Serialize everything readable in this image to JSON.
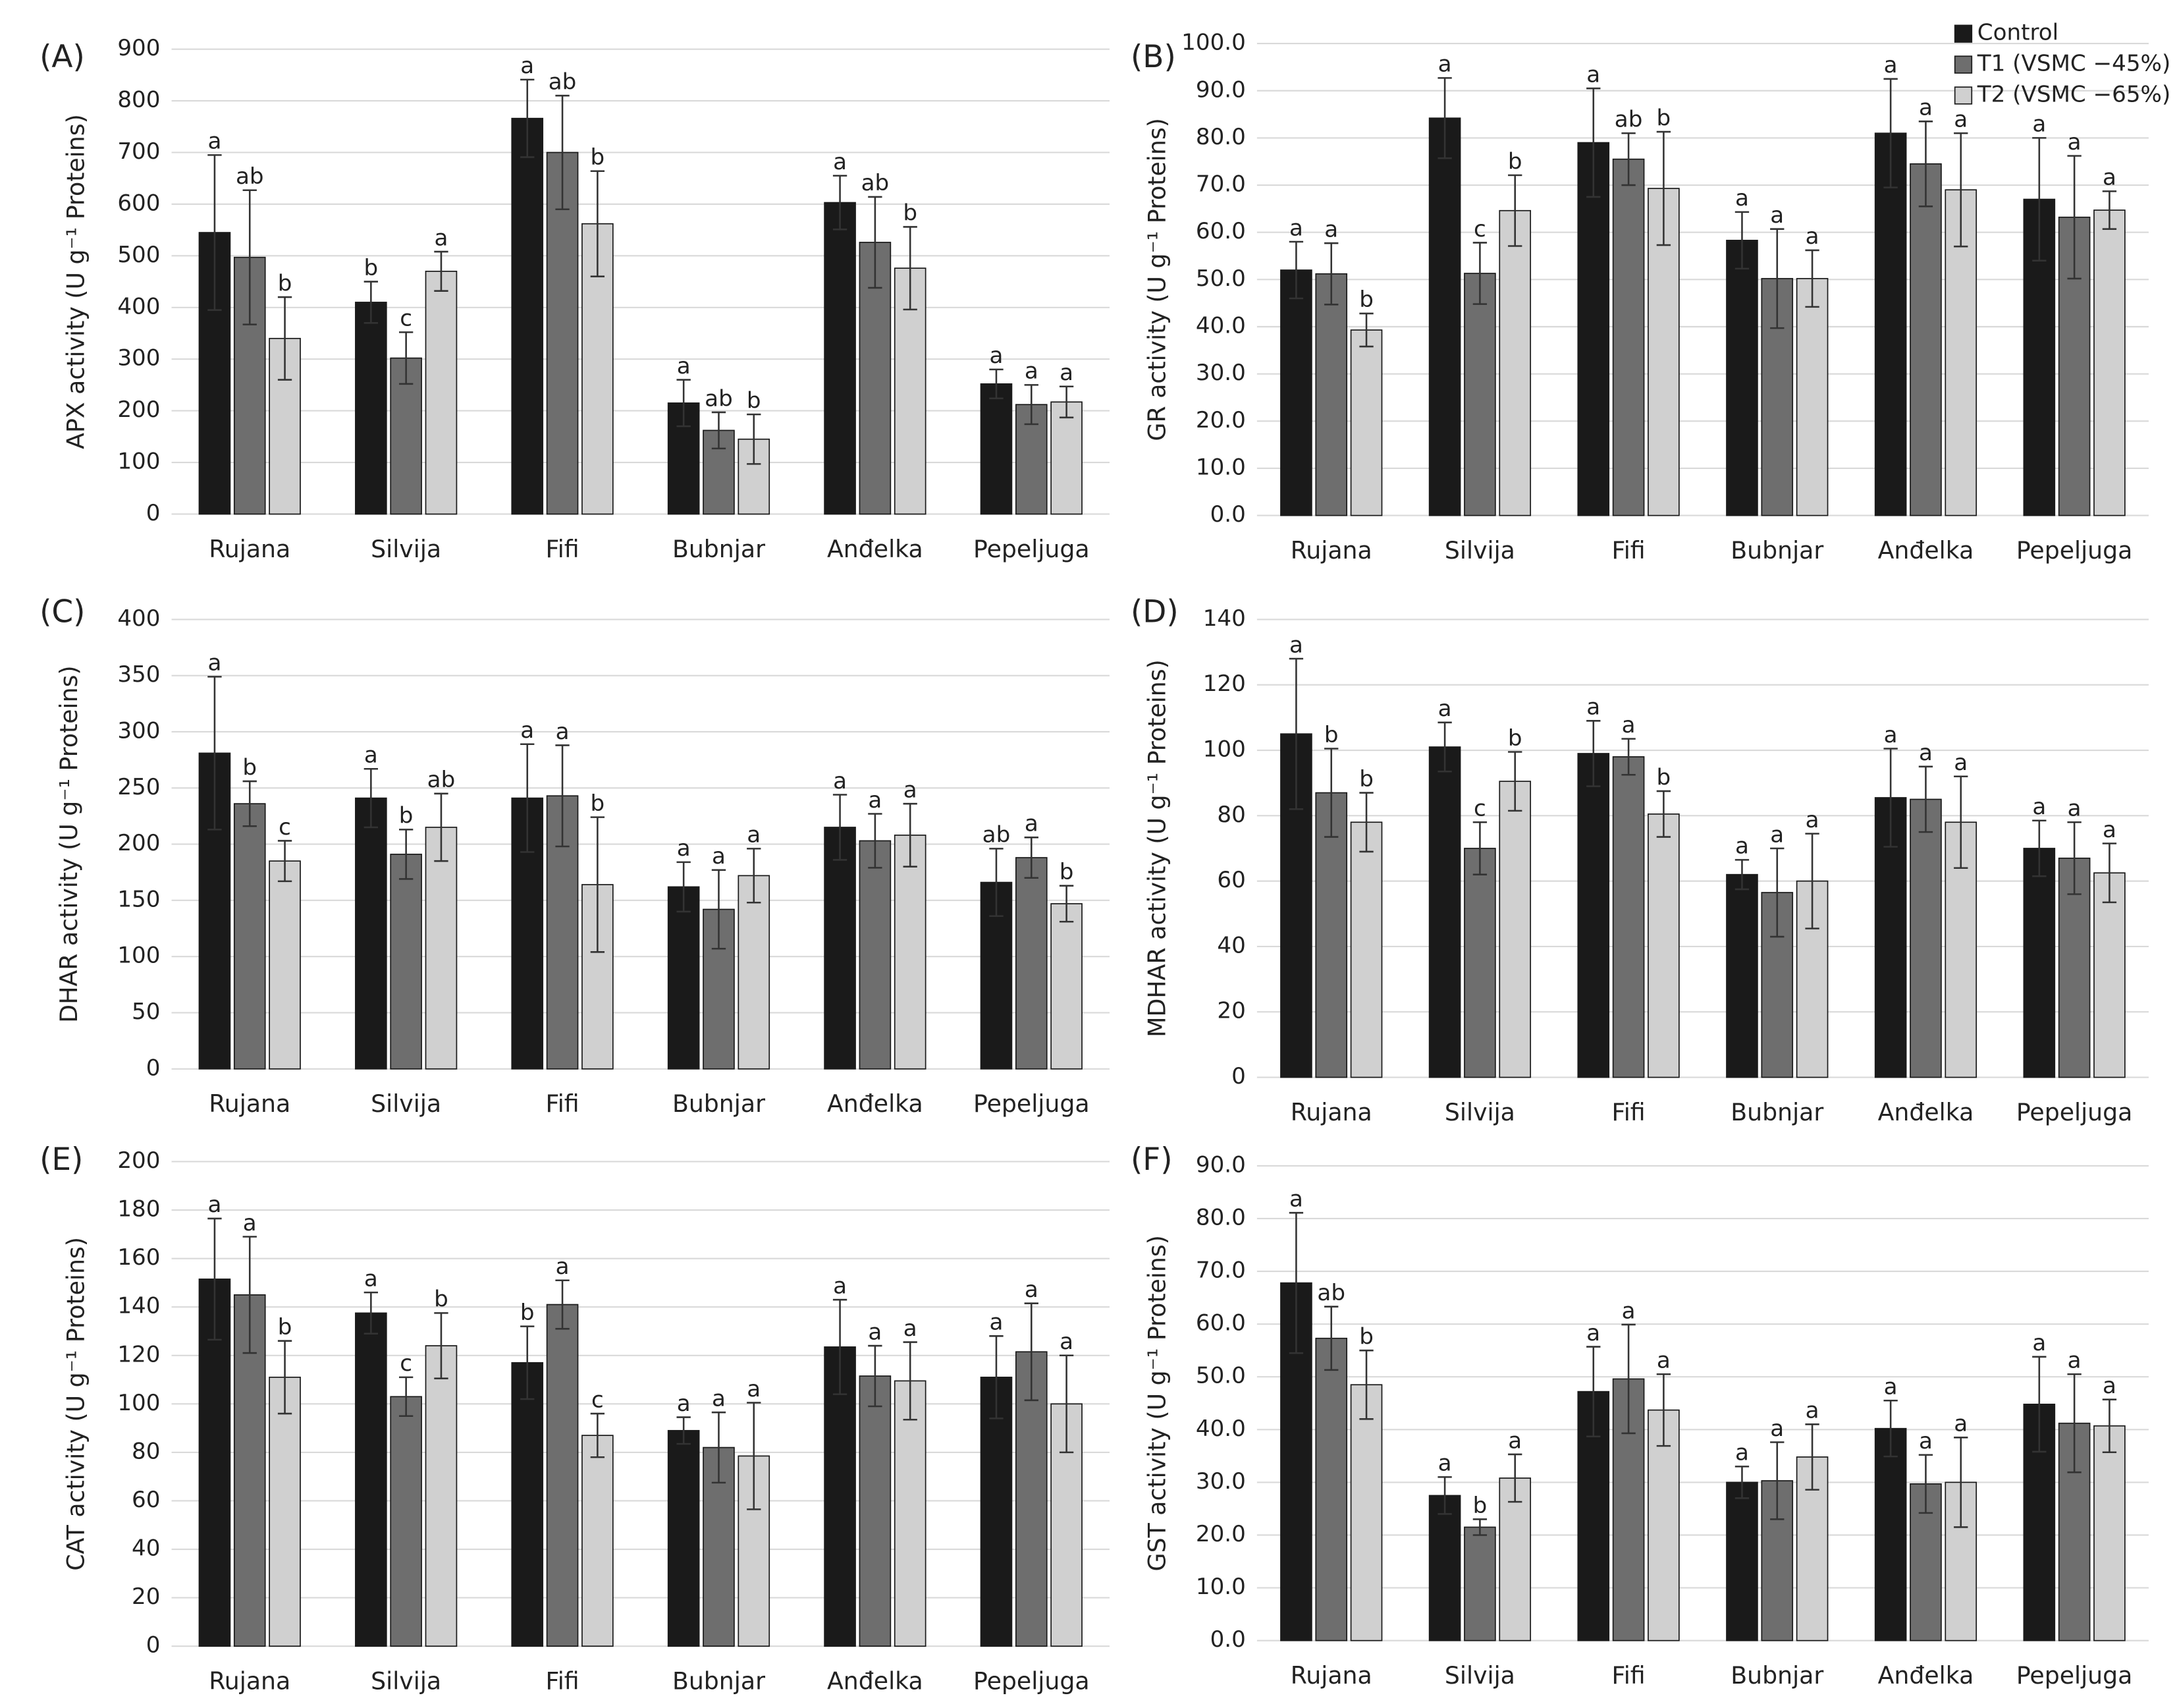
{
  "chart_data": [
    {
      "type": "bar",
      "label": "(A)",
      "ylabel": "APX activity (U g⁻¹ Proteins)",
      "categories": [
        "Rujana",
        "Silvija",
        "Fifi",
        "Bubnjar",
        "Anđelka",
        "Pepeljuga"
      ],
      "series": [
        {
          "color": "#1a1a1a",
          "values": [
            545,
            410,
            766,
            215,
            603,
            252
          ],
          "errors": [
            150,
            40,
            75,
            45,
            52,
            28
          ],
          "letters": [
            "a",
            "b",
            "a",
            "a",
            "a",
            "a"
          ]
        },
        {
          "color": "#6e6e6e",
          "values": [
            497,
            302,
            700,
            162,
            526,
            212
          ],
          "errors": [
            130,
            50,
            110,
            35,
            88,
            38
          ],
          "letters": [
            "ab",
            "c",
            "ab",
            "ab",
            "ab",
            "a"
          ]
        },
        {
          "color": "#d0d0d0",
          "values": [
            340,
            470,
            562,
            145,
            476,
            217
          ],
          "errors": [
            80,
            38,
            102,
            48,
            80,
            30
          ],
          "letters": [
            "b",
            "a",
            "b",
            "b",
            "b",
            "a"
          ]
        }
      ],
      "ylim": [
        0,
        900
      ],
      "yticks": [
        0,
        100,
        200,
        300,
        400,
        500,
        600,
        700,
        800,
        900
      ],
      "grid": true
    },
    {
      "type": "bar",
      "label": "(B)",
      "ylabel": "GR activity (U g⁻¹ Proteins)",
      "categories": [
        "Rujana",
        "Silvija",
        "Fifi",
        "Bubnjar",
        "Anđelka",
        "Pepeljuga"
      ],
      "series": [
        {
          "name": "Control",
          "color": "#1a1a1a",
          "values": [
            52,
            84.2,
            79,
            58.3,
            81,
            67
          ],
          "errors": [
            6,
            8.5,
            11.5,
            6,
            11.5,
            13
          ],
          "letters": [
            "a",
            "a",
            "a",
            "a",
            "a",
            "a"
          ]
        },
        {
          "name": "T1 (VSMC −45%)",
          "color": "#6e6e6e",
          "values": [
            51.2,
            51.3,
            75.5,
            50.2,
            74.5,
            63.2
          ],
          "errors": [
            6.5,
            6.5,
            5.5,
            10.5,
            9,
            13
          ],
          "letters": [
            "a",
            "c",
            "ab",
            "a",
            "a",
            "a"
          ]
        },
        {
          "name": "T2 (VSMC −65%)",
          "color": "#d0d0d0",
          "values": [
            39.3,
            64.6,
            69.3,
            50.2,
            69,
            64.7
          ],
          "errors": [
            3.5,
            7.5,
            12,
            6,
            12,
            4
          ],
          "letters": [
            "b",
            "b",
            "b",
            "a",
            "a",
            "a"
          ]
        }
      ],
      "ylim": [
        0,
        100
      ],
      "yticks": [
        {
          "value": 0,
          "label": "0.0"
        },
        {
          "value": 10,
          "label": "10.0"
        },
        {
          "value": 20,
          "label": "20.0"
        },
        {
          "value": 30,
          "label": "30.0"
        },
        {
          "value": 40,
          "label": "40.0"
        },
        {
          "value": 50,
          "label": "50.0"
        },
        {
          "value": 60,
          "label": "60.0"
        },
        {
          "value": 70,
          "label": "70.0"
        },
        {
          "value": 80,
          "label": "80.0"
        },
        {
          "value": 90,
          "label": "90.0"
        },
        {
          "value": 100,
          "label": "100.0"
        }
      ],
      "grid": true,
      "legend": "upper right"
    },
    {
      "type": "bar",
      "label": "(C)",
      "ylabel": "DHAR activity (U g⁻¹ Proteins)",
      "categories": [
        "Rujana",
        "Silvija",
        "Fifi",
        "Bubnjar",
        "Anđelka",
        "Pepeljuga"
      ],
      "series": [
        {
          "color": "#1a1a1a",
          "values": [
            281,
            241,
            241,
            162,
            215,
            166
          ],
          "errors": [
            68,
            26,
            48,
            22,
            29,
            30
          ],
          "letters": [
            "a",
            "a",
            "a",
            "a",
            "a",
            "ab"
          ]
        },
        {
          "color": "#6e6e6e",
          "values": [
            236,
            191,
            243,
            142,
            203,
            188
          ],
          "errors": [
            20,
            22,
            45,
            35,
            24,
            18
          ],
          "letters": [
            "b",
            "b",
            "a",
            "a",
            "a",
            "a"
          ]
        },
        {
          "color": "#d0d0d0",
          "values": [
            185,
            215,
            164,
            172,
            208,
            147
          ],
          "errors": [
            18,
            30,
            60,
            24,
            28,
            16
          ],
          "letters": [
            "c",
            "ab",
            "b",
            "a",
            "a",
            "b"
          ]
        }
      ],
      "ylim": [
        0,
        400
      ],
      "yticks": [
        0,
        50,
        100,
        150,
        200,
        250,
        300,
        350,
        400
      ],
      "grid": true
    },
    {
      "type": "bar",
      "label": "(D)",
      "ylabel": "MDHAR activity (U g⁻¹ Proteins)",
      "categories": [
        "Rujana",
        "Silvija",
        "Fifi",
        "Bubnjar",
        "Anđelka",
        "Pepeljuga"
      ],
      "series": [
        {
          "color": "#1a1a1a",
          "values": [
            105,
            101,
            99,
            62,
            85.5,
            70
          ],
          "errors": [
            23,
            7.5,
            10,
            4.5,
            15,
            8.5
          ],
          "letters": [
            "a",
            "a",
            "a",
            "a",
            "a",
            "a"
          ]
        },
        {
          "color": "#6e6e6e",
          "values": [
            87,
            70,
            98,
            56.5,
            85,
            67
          ],
          "errors": [
            13.5,
            8,
            5.5,
            13.5,
            10,
            11
          ],
          "letters": [
            "b",
            "c",
            "a",
            "a",
            "a",
            "a"
          ]
        },
        {
          "color": "#d0d0d0",
          "values": [
            78,
            90.5,
            80.5,
            60,
            78,
            62.5
          ],
          "errors": [
            9,
            9,
            7,
            14.5,
            14,
            9
          ],
          "letters": [
            "b",
            "b",
            "b",
            "a",
            "a",
            "a"
          ]
        }
      ],
      "ylim": [
        0,
        140
      ],
      "yticks": [
        0,
        20,
        40,
        60,
        80,
        100,
        120,
        140
      ],
      "grid": true
    },
    {
      "type": "bar",
      "label": "(E)",
      "ylabel": "CAT activity (U g⁻¹ Proteins)",
      "categories": [
        "Rujana",
        "Silvija",
        "Fifi",
        "Bubnjar",
        "Anđelka",
        "Pepeljuga"
      ],
      "series": [
        {
          "color": "#1a1a1a",
          "values": [
            151.5,
            137.5,
            117,
            89,
            123.5,
            111
          ],
          "errors": [
            25,
            8.5,
            15,
            5.5,
            19.5,
            17
          ],
          "letters": [
            "a",
            "a",
            "b",
            "a",
            "a",
            "a"
          ]
        },
        {
          "color": "#6e6e6e",
          "values": [
            145,
            103,
            141,
            82,
            111.5,
            121.5
          ],
          "errors": [
            24,
            8,
            10,
            14.5,
            12.5,
            20
          ],
          "letters": [
            "a",
            "c",
            "a",
            "a",
            "a",
            "a"
          ]
        },
        {
          "color": "#d0d0d0",
          "values": [
            111,
            124,
            87,
            78.5,
            109.5,
            100
          ],
          "errors": [
            15,
            13.5,
            9,
            22,
            16,
            20
          ],
          "letters": [
            "b",
            "b",
            "c",
            "a",
            "a",
            "a"
          ]
        }
      ],
      "ylim": [
        0,
        200
      ],
      "yticks": [
        0,
        20,
        40,
        60,
        80,
        100,
        120,
        140,
        160,
        180,
        200
      ],
      "grid": true
    },
    {
      "type": "bar",
      "label": "(F)",
      "ylabel": "GST activity (U g⁻¹ Proteins)",
      "categories": [
        "Rujana",
        "Silvija",
        "Fifi",
        "Bubnjar",
        "Anđelka",
        "Pepeljuga"
      ],
      "series": [
        {
          "color": "#1a1a1a",
          "values": [
            67.8,
            27.5,
            47.2,
            30,
            40.2,
            44.8
          ],
          "errors": [
            13.3,
            3.5,
            8.5,
            3,
            5.3,
            9
          ],
          "letters": [
            "a",
            "a",
            "a",
            "a",
            "a",
            "a"
          ]
        },
        {
          "color": "#6e6e6e",
          "values": [
            57.3,
            21.5,
            49.6,
            30.3,
            29.7,
            41.2
          ],
          "errors": [
            6,
            1.5,
            10.3,
            7.3,
            5.5,
            9.3
          ],
          "letters": [
            "ab",
            "b",
            "a",
            "a",
            "a",
            "a"
          ]
        },
        {
          "color": "#d0d0d0",
          "values": [
            48.5,
            30.8,
            43.7,
            34.8,
            30,
            40.7
          ],
          "errors": [
            6.5,
            4.5,
            6.8,
            6.2,
            8.5,
            5
          ],
          "letters": [
            "b",
            "a",
            "a",
            "a",
            "a",
            "a"
          ]
        }
      ],
      "ylim": [
        0,
        90
      ],
      "yticks": [
        {
          "value": 0,
          "label": "0.0"
        },
        {
          "value": 10,
          "label": "10.0"
        },
        {
          "value": 20,
          "label": "20.0"
        },
        {
          "value": 30,
          "label": "30.0"
        },
        {
          "value": 40,
          "label": "40.0"
        },
        {
          "value": 50,
          "label": "50.0"
        },
        {
          "value": 60,
          "label": "60.0"
        },
        {
          "value": 70,
          "label": "70.0"
        },
        {
          "value": 80,
          "label": "80.0"
        },
        {
          "value": 90,
          "label": "90.0"
        }
      ],
      "grid": true
    }
  ]
}
